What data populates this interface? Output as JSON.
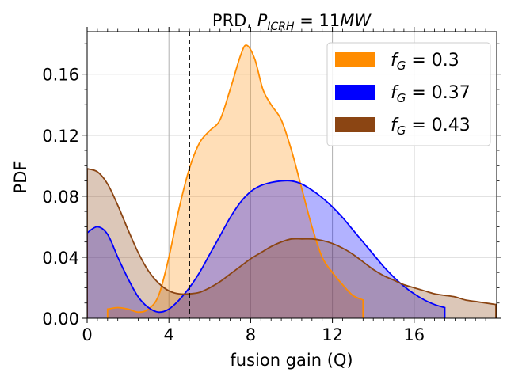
{
  "chart_data": {
    "type": "area",
    "title_prefix": "PRD, ",
    "title_math": "P",
    "title_sub": "ICRH",
    "title_value": " = 11",
    "title_unit": "MW",
    "xlabel": "fusion gain (Q)",
    "ylabel": "PDF",
    "xlim": [
      0,
      20
    ],
    "ylim": [
      0,
      0.19
    ],
    "x_ticks": [
      0,
      4,
      8,
      12,
      16
    ],
    "x_tick_labels": [
      "0",
      "4",
      "8",
      "12",
      "16"
    ],
    "y_ticks": [
      0.0,
      0.04,
      0.08,
      0.12,
      0.16
    ],
    "y_tick_labels": [
      "0.00",
      "0.04",
      "0.08",
      "0.12",
      "0.16"
    ],
    "grid": true,
    "legend_position": "top-right",
    "vline": {
      "x": 5,
      "style": "dashed",
      "color": "#000000"
    },
    "series": [
      {
        "name": "f_G = 0.3",
        "label_var": "f",
        "label_sub": "G",
        "label_value": " = 0.3",
        "line_color": "#ff8c00",
        "fill_color": "#ffa032",
        "fill_opacity": 0.35,
        "x": [
          1.0,
          1.5,
          2.0,
          2.5,
          3.0,
          3.5,
          4.0,
          4.5,
          5.0,
          5.5,
          6.0,
          6.5,
          7.0,
          7.5,
          7.8,
          8.2,
          8.6,
          9.0,
          9.5,
          10.0,
          10.5,
          11.0,
          11.5,
          12.0,
          12.5,
          13.0,
          13.5
        ],
        "y": [
          0.006,
          0.007,
          0.006,
          0.004,
          0.006,
          0.015,
          0.04,
          0.072,
          0.098,
          0.115,
          0.123,
          0.13,
          0.15,
          0.172,
          0.179,
          0.17,
          0.15,
          0.14,
          0.13,
          0.11,
          0.085,
          0.06,
          0.04,
          0.03,
          0.022,
          0.015,
          0.012
        ]
      },
      {
        "name": "f_G = 0.37",
        "label_var": "f",
        "label_sub": "G",
        "label_value": " = 0.37",
        "line_color": "#0000ff",
        "fill_color": "#0000ff",
        "fill_opacity": 0.3,
        "x": [
          0.0,
          0.5,
          1.0,
          1.5,
          2.0,
          2.5,
          3.0,
          3.5,
          4.0,
          4.5,
          5.0,
          5.5,
          6.0,
          6.5,
          7.0,
          7.5,
          8.0,
          8.5,
          9.0,
          9.5,
          10.0,
          10.5,
          11.0,
          11.5,
          12.0,
          12.5,
          13.0,
          13.5,
          14.0,
          14.5,
          15.0,
          15.5,
          16.0,
          16.5,
          17.0,
          17.5
        ],
        "y": [
          0.056,
          0.06,
          0.055,
          0.04,
          0.026,
          0.014,
          0.007,
          0.004,
          0.006,
          0.012,
          0.02,
          0.03,
          0.042,
          0.054,
          0.066,
          0.076,
          0.083,
          0.087,
          0.089,
          0.09,
          0.09,
          0.088,
          0.084,
          0.079,
          0.073,
          0.066,
          0.058,
          0.05,
          0.042,
          0.034,
          0.027,
          0.021,
          0.016,
          0.012,
          0.009,
          0.007
        ]
      },
      {
        "name": "f_G = 0.43",
        "label_var": "f",
        "label_sub": "G",
        "label_value": " = 0.43",
        "line_color": "#8b4513",
        "fill_color": "#8b4513",
        "fill_opacity": 0.3,
        "x": [
          0.0,
          0.5,
          1.0,
          1.5,
          2.0,
          2.5,
          3.0,
          3.5,
          4.0,
          4.5,
          5.0,
          5.5,
          6.0,
          6.5,
          7.0,
          7.5,
          8.0,
          8.5,
          9.0,
          9.5,
          10.0,
          10.5,
          11.0,
          11.5,
          12.0,
          12.5,
          13.0,
          13.5,
          14.0,
          14.5,
          15.0,
          15.5,
          16.0,
          16.5,
          17.0,
          17.5,
          18.0,
          18.5,
          19.0,
          19.5,
          20.0
        ],
        "y": [
          0.098,
          0.096,
          0.088,
          0.074,
          0.058,
          0.043,
          0.031,
          0.023,
          0.018,
          0.016,
          0.016,
          0.017,
          0.02,
          0.024,
          0.029,
          0.034,
          0.039,
          0.043,
          0.047,
          0.05,
          0.052,
          0.052,
          0.052,
          0.051,
          0.049,
          0.046,
          0.042,
          0.037,
          0.032,
          0.028,
          0.025,
          0.022,
          0.02,
          0.018,
          0.016,
          0.015,
          0.014,
          0.012,
          0.011,
          0.01,
          0.009
        ]
      }
    ]
  }
}
